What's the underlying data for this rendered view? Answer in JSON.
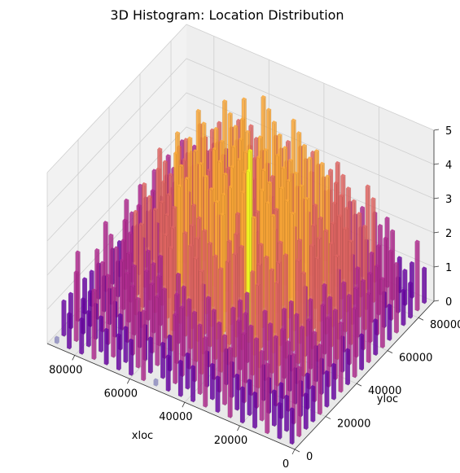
{
  "chart_data": {
    "type": "bar3d",
    "title": "3D Histogram: Location Distribution",
    "xlabel": "xloc",
    "ylabel": "yloc",
    "zlabel": "",
    "xlim": [
      0,
      90000
    ],
    "ylim": [
      0,
      90000
    ],
    "zlim": [
      0,
      5
    ],
    "x_ticks": [
      0,
      20000,
      40000,
      60000,
      80000
    ],
    "y_ticks": [
      0,
      20000,
      40000,
      60000,
      80000
    ],
    "z_ticks": [
      0,
      1,
      2,
      3,
      4,
      5
    ],
    "x_tick_labels": [
      "0",
      "20000",
      "40000",
      "60000",
      "80000"
    ],
    "y_tick_labels": [
      "0",
      "20000",
      "40000",
      "60000",
      "80000"
    ],
    "z_tick_labels": [
      "0",
      "1",
      "2",
      "3",
      "4",
      "5"
    ],
    "colormap": "plasma",
    "bins_x": 20,
    "bins_y": 20,
    "counts": [
      [
        1,
        1,
        2,
        1,
        1,
        2,
        1,
        2,
        1,
        1,
        1,
        0,
        2,
        1,
        1,
        1,
        2,
        1,
        1,
        0
      ],
      [
        2,
        1,
        1,
        2,
        1,
        1,
        2,
        1,
        2,
        1,
        2,
        1,
        1,
        2,
        1,
        2,
        1,
        1,
        2,
        1
      ],
      [
        1,
        2,
        1,
        1,
        2,
        2,
        1,
        2,
        1,
        2,
        2,
        1,
        2,
        1,
        2,
        1,
        2,
        1,
        1,
        1
      ],
      [
        1,
        1,
        2,
        2,
        1,
        2,
        2,
        1,
        2,
        3,
        2,
        2,
        2,
        2,
        1,
        2,
        1,
        2,
        1,
        2
      ],
      [
        2,
        1,
        1,
        2,
        2,
        3,
        2,
        2,
        3,
        2,
        3,
        2,
        3,
        2,
        2,
        2,
        2,
        1,
        2,
        1
      ],
      [
        1,
        2,
        2,
        1,
        3,
        2,
        3,
        2,
        3,
        3,
        2,
        3,
        2,
        3,
        2,
        3,
        2,
        2,
        1,
        1
      ],
      [
        1,
        1,
        2,
        2,
        2,
        3,
        3,
        2,
        3,
        4,
        3,
        3,
        3,
        3,
        2,
        2,
        3,
        2,
        2,
        1
      ],
      [
        2,
        2,
        1,
        3,
        2,
        3,
        3,
        4,
        3,
        3,
        4,
        3,
        3,
        4,
        3,
        3,
        2,
        2,
        1,
        2
      ],
      [
        1,
        2,
        2,
        2,
        3,
        3,
        4,
        3,
        5,
        3,
        4,
        4,
        3,
        4,
        3,
        3,
        3,
        2,
        2,
        1
      ],
      [
        2,
        1,
        2,
        3,
        2,
        4,
        3,
        4,
        3,
        4,
        4,
        3,
        4,
        3,
        4,
        3,
        2,
        3,
        2,
        1
      ],
      [
        1,
        2,
        3,
        2,
        3,
        3,
        4,
        3,
        4,
        5,
        3,
        4,
        3,
        4,
        3,
        4,
        3,
        2,
        2,
        2
      ],
      [
        2,
        2,
        2,
        3,
        3,
        4,
        3,
        4,
        4,
        3,
        4,
        4,
        4,
        3,
        4,
        3,
        3,
        3,
        2,
        1
      ],
      [
        1,
        2,
        3,
        2,
        3,
        3,
        4,
        4,
        3,
        4,
        3,
        4,
        3,
        4,
        3,
        4,
        4,
        3,
        2,
        2
      ],
      [
        2,
        2,
        2,
        3,
        3,
        3,
        3,
        4,
        4,
        3,
        4,
        4,
        4,
        4,
        3,
        3,
        3,
        2,
        3,
        1
      ],
      [
        1,
        2,
        3,
        2,
        3,
        4,
        3,
        3,
        4,
        4,
        4,
        3,
        4,
        3,
        4,
        4,
        3,
        3,
        2,
        2
      ],
      [
        2,
        1,
        2,
        3,
        3,
        3,
        4,
        4,
        3,
        4,
        3,
        4,
        4,
        4,
        3,
        3,
        4,
        3,
        2,
        1
      ],
      [
        1,
        2,
        2,
        2,
        3,
        3,
        3,
        4,
        4,
        3,
        4,
        3,
        3,
        4,
        4,
        3,
        3,
        2,
        2,
        2
      ],
      [
        1,
        1,
        2,
        3,
        2,
        3,
        3,
        3,
        3,
        4,
        3,
        4,
        3,
        3,
        3,
        4,
        3,
        3,
        2,
        1
      ],
      [
        2,
        1,
        2,
        2,
        3,
        2,
        3,
        3,
        3,
        3,
        4,
        3,
        4,
        3,
        4,
        3,
        3,
        2,
        2,
        2
      ],
      [
        1,
        1,
        1,
        2,
        2,
        2,
        2,
        3,
        2,
        3,
        3,
        3,
        3,
        4,
        3,
        3,
        2,
        2,
        2,
        1
      ]
    ]
  }
}
